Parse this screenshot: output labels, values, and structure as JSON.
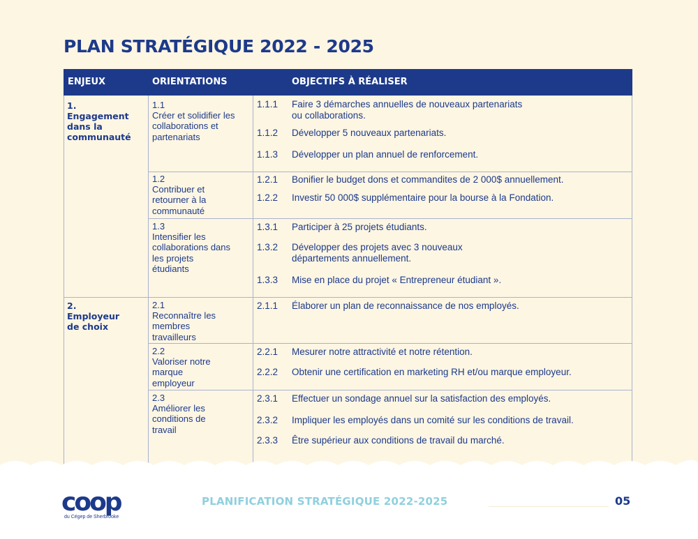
{
  "page": {
    "title": "PLAN STRATÉGIQUE 2022 - 2025",
    "footer_title": "PLANIFICATION STRATÉGIQUE 2022-2025",
    "page_number": "05",
    "logo_text": "coop",
    "logo_subtext": "du Cégep de Sherbrooke"
  },
  "colors": {
    "primary": "#1d3a8a",
    "background": "#fdf6e3",
    "footer_accent": "#8fd0de"
  },
  "table": {
    "headers": {
      "enjeux": "ENJEUX",
      "orientations": "ORIENTATIONS",
      "objectifs": "OBJECTIFS À RÉALISER"
    },
    "enjeux": [
      {
        "num": "1.",
        "label": "Engagement dans la communauté"
      },
      {
        "num": "2.",
        "label": "Employeur de choix"
      }
    ],
    "orientations": [
      {
        "num": "1.1",
        "label": "Créer et solidifier les collaborations et partenariats"
      },
      {
        "num": "1.2",
        "label": "Contribuer et retourner à la communauté"
      },
      {
        "num": "1.3",
        "label": "Intensifier les collaborations dans les projets étudiants"
      },
      {
        "num": "2.1",
        "label": "Reconnaître les membres travailleurs"
      },
      {
        "num": "2.2",
        "label": "Valoriser notre marque employeur"
      },
      {
        "num": "2.3",
        "label": "Améliorer les conditions de travail"
      }
    ],
    "objectifs": [
      {
        "num": "1.1.1",
        "text": "Faire 3 démarches annuelles de nouveaux partenariats\nou collaborations."
      },
      {
        "num": "1.1.2",
        "text": "Développer 5 nouveaux partenariats."
      },
      {
        "num": "1.1.3",
        "text": "Développer un plan annuel de renforcement."
      },
      {
        "num": "1.2.1",
        "text": "Bonifier le budget dons et commandites de 2 000$ annuellement."
      },
      {
        "num": "1.2.2",
        "text": "Investir 50 000$ supplémentaire pour la bourse à la Fondation."
      },
      {
        "num": "1.3.1",
        "text": "Participer à 25 projets étudiants."
      },
      {
        "num": "1.3.2",
        "text": "Développer des projets avec 3 nouveaux\ndépartements annuellement."
      },
      {
        "num": "1.3.3",
        "text": "Mise en place du projet « Entrepreneur étudiant »."
      },
      {
        "num": "2.1.1",
        "text": "Élaborer un plan de reconnaissance de nos employés."
      },
      {
        "num": "2.2.1",
        "text": "Mesurer notre attractivité et  notre rétention."
      },
      {
        "num": "2.2.2",
        "text": "Obtenir une certification en marketing RH et/ou marque employeur."
      },
      {
        "num": "2.3.1",
        "text": "Effectuer un sondage annuel sur la satisfaction des employés."
      },
      {
        "num": "2.3.2",
        "text": "Impliquer les employés dans un comité sur les conditions de travail."
      },
      {
        "num": "2.3.3",
        "text": "Être supérieur aux conditions de travail du marché."
      }
    ]
  }
}
